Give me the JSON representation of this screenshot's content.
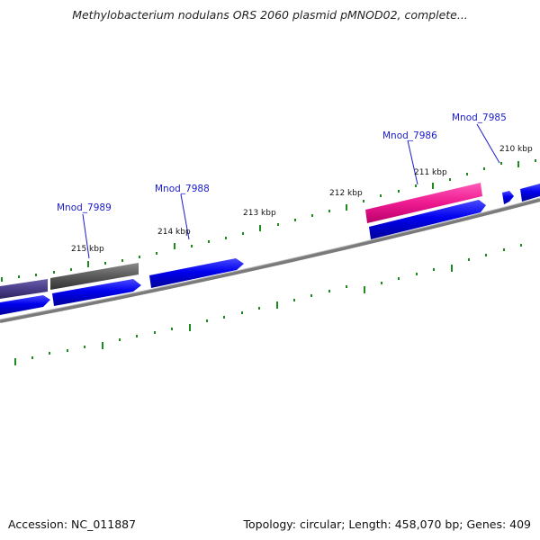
{
  "title": "Methylobacterium nodulans ORS 2060 plasmid pMNOD02, complete...",
  "footer": {
    "accession": "Accession: NC_011887",
    "summary": "Topology: circular; Length: 458,070 bp; Genes: 409"
  },
  "colors": {
    "backbone": "#8a8a8a",
    "forward_gene": "#0000ee",
    "highlight_gene": "#ee1a90",
    "gray_gene": "#5a5a5a",
    "purple_gene": "#4a3e8a",
    "tick": "#1f8a1f",
    "gene_label": "#1a1acc"
  },
  "scale_labels": [
    "215 kbp",
    "214 kbp",
    "213 kbp",
    "212 kbp",
    "211 kbp",
    "210 kbp"
  ],
  "gene_labels": [
    "Mnod_7989",
    "Mnod_7988",
    "Mnod_7986",
    "Mnod_7985"
  ]
}
